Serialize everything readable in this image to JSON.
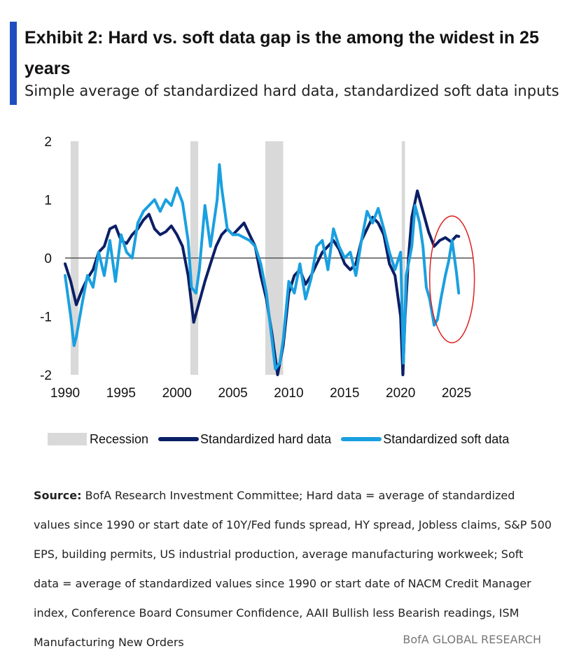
{
  "header": {
    "title": "Exhibit 2: Hard vs. soft data gap is the among the widest in 25 years",
    "subtitle": "Simple average of standardized hard data, standardized soft data inputs"
  },
  "colors": {
    "accent": "#1f4fbf",
    "recession": "#d9d9d9",
    "hard": "#0b1f66",
    "soft": "#1aa0e0",
    "zero_line": "#555555",
    "annotation_circle": "#e02020"
  },
  "legend": {
    "recession": "Recession",
    "hard": "Standardized hard data",
    "soft": "Standardized soft data"
  },
  "source": {
    "label": "Source:",
    "text": "BofA Research Investment Committee; Hard data = average of standardized values since 1990 or start date of 10Y/Fed funds spread, HY spread, Jobless claims, S&P 500 EPS, building permits, US industrial production, average manufacturing workweek; Soft data = average of standardized values since 1990 or start date of NACM Credit Manager index, Conference Board Consumer Confidence, AAII Bullish less Bearish readings, ISM Manufacturing New Orders"
  },
  "footer": "BofA GLOBAL RESEARCH",
  "chart_data": {
    "type": "line",
    "xlim": [
      1990,
      2026.5
    ],
    "ylim": [
      -2,
      2
    ],
    "x_ticks": [
      "1990",
      "1995",
      "2000",
      "2005",
      "2010",
      "2015",
      "2020",
      "2025"
    ],
    "y_ticks": [
      "2",
      "1",
      "0",
      "-1",
      "-2"
    ],
    "grid": false,
    "legend_position": "bottom",
    "recessions": [
      [
        1990.5,
        1991.2
      ],
      [
        2001.2,
        2001.9
      ],
      [
        2007.9,
        2009.5
      ],
      [
        2020.1,
        2020.4
      ]
    ],
    "annotation": {
      "shape": "ellipse",
      "x_range": [
        2022.6,
        2026.6
      ],
      "y_range": [
        -1.45,
        0.72
      ]
    },
    "series": [
      {
        "name": "Standardized hard data",
        "x": [
          1990,
          1990.5,
          1991,
          1991.5,
          1992,
          1992.5,
          1993,
          1993.5,
          1994,
          1994.5,
          1995,
          1995.5,
          1996,
          1996.5,
          1997,
          1997.5,
          1998,
          1998.5,
          1999,
          1999.5,
          2000,
          2000.5,
          2001,
          2001.5,
          2002,
          2002.5,
          2003,
          2003.5,
          2004,
          2004.5,
          2005,
          2005.5,
          2006,
          2006.5,
          2007,
          2007.5,
          2008,
          2008.5,
          2009,
          2009.5,
          2010,
          2010.5,
          2011,
          2011.5,
          2012,
          2012.5,
          2013,
          2013.5,
          2014,
          2014.5,
          2015,
          2015.5,
          2016,
          2016.5,
          2017,
          2017.5,
          2018,
          2018.5,
          2019,
          2019.5,
          2020,
          2020.2,
          2020.4,
          2020.7,
          2021,
          2021.5,
          2022,
          2022.5,
          2023,
          2023.5,
          2024,
          2024.5,
          2025,
          2025.2
        ],
        "values": [
          -0.1,
          -0.4,
          -0.8,
          -0.55,
          -0.35,
          -0.2,
          0.1,
          0.2,
          0.5,
          0.55,
          0.3,
          0.25,
          0.4,
          0.5,
          0.65,
          0.75,
          0.5,
          0.4,
          0.45,
          0.55,
          0.4,
          0.2,
          -0.3,
          -1.1,
          -0.75,
          -0.4,
          -0.1,
          0.2,
          0.4,
          0.5,
          0.4,
          0.5,
          0.6,
          0.4,
          0.2,
          -0.3,
          -0.7,
          -1.3,
          -2.0,
          -1.5,
          -0.6,
          -0.3,
          -0.2,
          -0.45,
          -0.3,
          -0.1,
          0.1,
          0.2,
          0.3,
          0.15,
          -0.1,
          -0.2,
          -0.1,
          0.3,
          0.5,
          0.7,
          0.6,
          0.4,
          -0.1,
          -0.3,
          -1.0,
          -2.0,
          -1.0,
          0.0,
          0.7,
          1.15,
          0.8,
          0.45,
          0.2,
          0.3,
          0.35,
          0.28,
          0.38,
          0.37
        ]
      },
      {
        "name": "Standardized soft data",
        "x": [
          1990,
          1990.5,
          1990.8,
          1991,
          1991.5,
          1992,
          1992.5,
          1993,
          1993.5,
          1994,
          1994.5,
          1995,
          1995.5,
          1996,
          1996.5,
          1997,
          1997.5,
          1998,
          1998.5,
          1999,
          1999.5,
          2000,
          2000.5,
          2001,
          2001.3,
          2001.7,
          2002,
          2002.5,
          2003,
          2003.3,
          2003.6,
          2003.8,
          2004,
          2004.5,
          2005,
          2005.5,
          2006,
          2006.5,
          2007,
          2007.5,
          2008,
          2008.5,
          2008.8,
          2009.2,
          2009.5,
          2010,
          2010.5,
          2011,
          2011.5,
          2012,
          2012.5,
          2013,
          2013.5,
          2014,
          2014.5,
          2015,
          2015.5,
          2016,
          2016.5,
          2017,
          2017.5,
          2018,
          2018.5,
          2019,
          2019.5,
          2020,
          2020.25,
          2020.5,
          2021,
          2021.3,
          2021.7,
          2022,
          2022.3,
          2022.6,
          2023,
          2023.3,
          2023.6,
          2024,
          2024.3,
          2024.6,
          2025,
          2025.2
        ],
        "values": [
          -0.3,
          -1.0,
          -1.5,
          -1.35,
          -0.8,
          -0.3,
          -0.5,
          0.1,
          -0.3,
          0.3,
          -0.4,
          0.4,
          0.1,
          0.0,
          0.6,
          0.8,
          0.9,
          1.0,
          0.8,
          1.0,
          0.9,
          1.2,
          0.95,
          0.3,
          -0.5,
          -0.6,
          -0.2,
          0.9,
          0.2,
          0.6,
          1.0,
          1.6,
          1.2,
          0.5,
          0.4,
          0.4,
          0.35,
          0.3,
          0.2,
          -0.1,
          -0.6,
          -1.4,
          -1.9,
          -1.8,
          -1.4,
          -0.4,
          -0.6,
          -0.1,
          -0.7,
          -0.35,
          0.2,
          0.3,
          -0.2,
          0.5,
          0.2,
          0.0,
          0.1,
          -0.3,
          0.3,
          0.8,
          0.6,
          0.85,
          0.5,
          0.1,
          -0.2,
          0.1,
          -1.8,
          -0.3,
          0.2,
          0.9,
          0.6,
          0.2,
          -0.5,
          -0.7,
          -1.15,
          -1.05,
          -0.7,
          -0.3,
          -0.05,
          0.3,
          -0.25,
          -0.6
        ]
      }
    ]
  }
}
